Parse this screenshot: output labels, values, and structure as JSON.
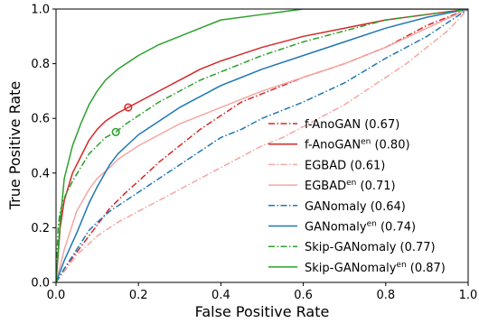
{
  "chart_data": {
    "type": "line",
    "xlabel": "False Positive Rate",
    "ylabel": "True Positive Rate",
    "xlim": [
      0,
      1
    ],
    "ylim": [
      0,
      1
    ],
    "xticks": [
      "0.0",
      "0.2",
      "0.4",
      "0.6",
      "0.8",
      "1.0"
    ],
    "yticks": [
      "0.0",
      "0.2",
      "0.4",
      "0.6",
      "0.8",
      "1.0"
    ],
    "grid": false,
    "legend_position": "lower-right",
    "series": [
      {
        "name": "f-AnoGAN (0.67)",
        "base": "f-AnoGAN",
        "sup": "",
        "auc": "(0.67)",
        "color": "#d62728",
        "dash": "dashdot",
        "x": [
          0,
          0.02,
          0.05,
          0.08,
          0.1,
          0.13,
          0.17,
          0.2,
          0.25,
          0.3,
          0.35,
          0.4,
          0.45,
          0.5,
          0.55,
          0.6,
          0.7,
          0.8,
          0.9,
          1.0
        ],
        "y": [
          0,
          0.05,
          0.11,
          0.17,
          0.21,
          0.27,
          0.33,
          0.37,
          0.44,
          0.5,
          0.56,
          0.61,
          0.66,
          0.69,
          0.72,
          0.75,
          0.8,
          0.86,
          0.94,
          1.0
        ]
      },
      {
        "name": "f-AnoGAN^en (0.80)",
        "base": "f-AnoGAN",
        "sup": "en",
        "auc": "(0.80)",
        "color": "#d62728",
        "dash": "solid",
        "marker": {
          "x": 0.175,
          "y": 0.64
        },
        "x": [
          0,
          0.01,
          0.02,
          0.04,
          0.06,
          0.08,
          0.1,
          0.12,
          0.15,
          0.175,
          0.2,
          0.25,
          0.3,
          0.35,
          0.4,
          0.5,
          0.6,
          0.7,
          0.8,
          0.9,
          1.0
        ],
        "y": [
          0,
          0.2,
          0.3,
          0.4,
          0.46,
          0.52,
          0.56,
          0.59,
          0.62,
          0.64,
          0.66,
          0.7,
          0.74,
          0.78,
          0.81,
          0.86,
          0.9,
          0.93,
          0.96,
          0.98,
          1.0
        ]
      },
      {
        "name": "EGBAD (0.61)",
        "base": "EGBAD",
        "sup": "",
        "auc": "(0.61)",
        "color": "#f4a6a2",
        "dash": "dashdot",
        "x": [
          0,
          0.05,
          0.1,
          0.15,
          0.2,
          0.25,
          0.3,
          0.35,
          0.4,
          0.45,
          0.5,
          0.55,
          0.6,
          0.65,
          0.7,
          0.75,
          0.8,
          0.85,
          0.9,
          0.95,
          1.0
        ],
        "y": [
          0,
          0.1,
          0.17,
          0.22,
          0.26,
          0.3,
          0.34,
          0.38,
          0.42,
          0.46,
          0.5,
          0.53,
          0.57,
          0.61,
          0.65,
          0.7,
          0.75,
          0.8,
          0.86,
          0.92,
          1.0
        ]
      },
      {
        "name": "EGBAD^en (0.71)",
        "base": "EGBAD",
        "sup": "en",
        "auc": "(0.71)",
        "color": "#f4a6a2",
        "dash": "solid",
        "x": [
          0,
          0.02,
          0.05,
          0.08,
          0.1,
          0.13,
          0.15,
          0.2,
          0.25,
          0.3,
          0.35,
          0.4,
          0.45,
          0.5,
          0.6,
          0.7,
          0.8,
          0.9,
          1.0
        ],
        "y": [
          0,
          0.12,
          0.26,
          0.34,
          0.38,
          0.42,
          0.45,
          0.5,
          0.54,
          0.58,
          0.61,
          0.64,
          0.67,
          0.7,
          0.75,
          0.8,
          0.86,
          0.93,
          1.0
        ]
      },
      {
        "name": "GANomaly (0.64)",
        "base": "GANomaly",
        "sup": "",
        "auc": "(0.64)",
        "color": "#1f77b4",
        "dash": "dashdot",
        "x": [
          0,
          0.02,
          0.05,
          0.08,
          0.1,
          0.13,
          0.15,
          0.2,
          0.25,
          0.3,
          0.35,
          0.4,
          0.45,
          0.5,
          0.55,
          0.6,
          0.7,
          0.8,
          0.9,
          1.0
        ],
        "y": [
          0,
          0.05,
          0.12,
          0.19,
          0.22,
          0.26,
          0.28,
          0.33,
          0.38,
          0.43,
          0.48,
          0.53,
          0.56,
          0.6,
          0.63,
          0.66,
          0.73,
          0.82,
          0.9,
          1.0
        ]
      },
      {
        "name": "GANomaly^en (0.74)",
        "base": "GANomaly",
        "sup": "en",
        "auc": "(0.74)",
        "color": "#1f77b4",
        "dash": "solid",
        "x": [
          0,
          0.02,
          0.05,
          0.08,
          0.1,
          0.13,
          0.15,
          0.2,
          0.25,
          0.3,
          0.35,
          0.4,
          0.45,
          0.5,
          0.6,
          0.7,
          0.8,
          0.9,
          1.0
        ],
        "y": [
          0,
          0.08,
          0.18,
          0.29,
          0.35,
          0.43,
          0.47,
          0.54,
          0.59,
          0.64,
          0.68,
          0.72,
          0.75,
          0.78,
          0.83,
          0.88,
          0.93,
          0.97,
          1.0
        ]
      },
      {
        "name": "Skip-GANomaly (0.77)",
        "base": "Skip-GANomaly",
        "sup": "",
        "auc": "(0.77)",
        "color": "#2ca02c",
        "dash": "dashdot",
        "marker": {
          "x": 0.145,
          "y": 0.55
        },
        "x": [
          0,
          0.005,
          0.01,
          0.02,
          0.04,
          0.06,
          0.08,
          0.1,
          0.12,
          0.145,
          0.17,
          0.2,
          0.25,
          0.3,
          0.35,
          0.4,
          0.5,
          0.6,
          0.7,
          0.8,
          0.9,
          1.0
        ],
        "y": [
          0,
          0.2,
          0.26,
          0.31,
          0.37,
          0.42,
          0.47,
          0.5,
          0.53,
          0.55,
          0.58,
          0.61,
          0.66,
          0.7,
          0.74,
          0.77,
          0.83,
          0.88,
          0.92,
          0.96,
          0.98,
          1.0
        ]
      },
      {
        "name": "Skip-GANomaly^en (0.87)",
        "base": "Skip-GANomaly",
        "sup": "en",
        "auc": "(0.87)",
        "color": "#2ca02c",
        "dash": "solid",
        "x": [
          0,
          0.01,
          0.02,
          0.04,
          0.06,
          0.08,
          0.1,
          0.12,
          0.15,
          0.2,
          0.25,
          0.3,
          0.35,
          0.4,
          0.5,
          0.55,
          0.6,
          0.7,
          0.8,
          0.9,
          1.0
        ],
        "y": [
          0,
          0.22,
          0.38,
          0.5,
          0.58,
          0.65,
          0.7,
          0.74,
          0.78,
          0.83,
          0.87,
          0.9,
          0.93,
          0.96,
          0.98,
          0.99,
          1.0,
          1.0,
          1.0,
          1.0,
          1.0
        ]
      }
    ]
  }
}
